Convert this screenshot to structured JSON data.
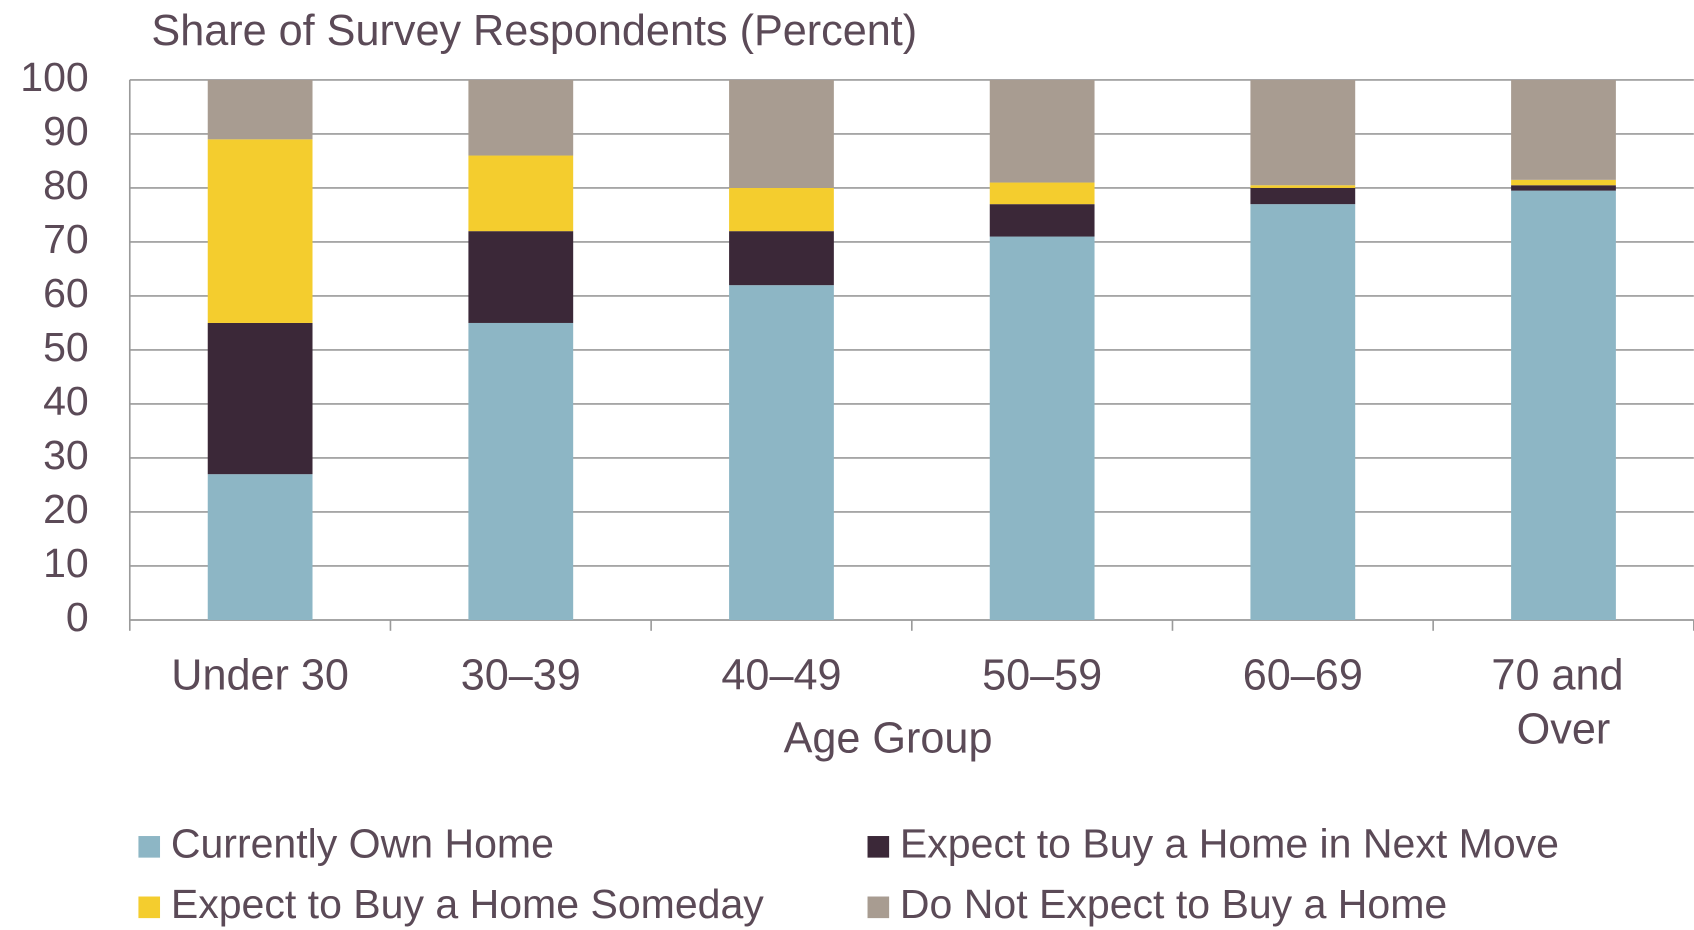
{
  "chart_data": {
    "type": "stacked_bar",
    "title": "Share of Survey Respondents (Percent)",
    "x_label": "Age Group",
    "categories": [
      "Under 30",
      "30–39",
      "40–49",
      "50–59",
      "60–69",
      "70 and Over"
    ],
    "series": [
      {
        "name": "Currently Own Home",
        "color": "#8db6c5",
        "values": [
          27,
          55,
          62,
          71,
          77,
          79.5
        ]
      },
      {
        "name": "Expect to Buy a Home in Next Move",
        "color": "#3b2838",
        "values": [
          28,
          17,
          10,
          6,
          3,
          1
        ]
      },
      {
        "name": "Expect to Buy a Home Someday",
        "color": "#f4cd2e",
        "values": [
          34,
          14,
          8,
          4,
          0.5,
          1
        ]
      },
      {
        "name": "Do Not Expect to Buy a Home",
        "color": "#a89c91",
        "values": [
          11,
          14,
          20,
          19,
          19.5,
          18.5
        ]
      }
    ],
    "ylim": [
      0,
      100
    ],
    "yticks": [
      0,
      10,
      20,
      30,
      40,
      50,
      60,
      70,
      80,
      90,
      100
    ],
    "grid": true
  }
}
